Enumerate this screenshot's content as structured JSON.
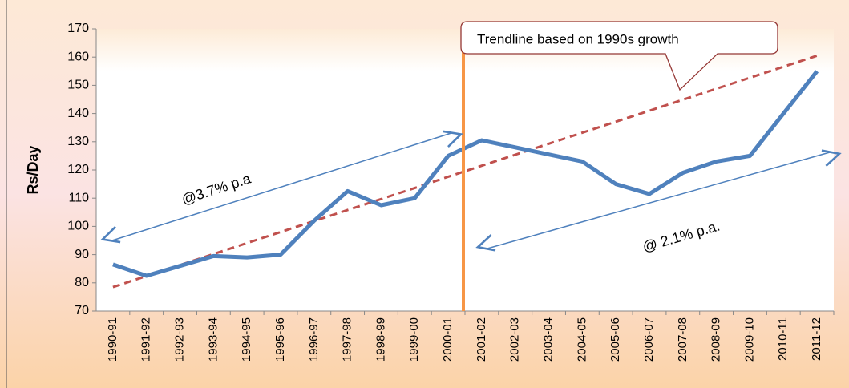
{
  "chart_data": {
    "type": "line",
    "ylabel": "Rs/Day",
    "categories": [
      "1990-91",
      "1991-92",
      "1992-93",
      "1993-94",
      "1994-95",
      "1995-96",
      "1996-97",
      "1997-98",
      "1998-99",
      "1999-00",
      "2000-01",
      "2001-02",
      "2002-03",
      "2003-04",
      "2004-05",
      "2005-06",
      "2006-07",
      "2007-08",
      "2008-09",
      "2009-10",
      "2010-11",
      "2011-12"
    ],
    "series": [
      {
        "color": "#4f81bd",
        "values": [
          86.5,
          82.5,
          86,
          89.5,
          89,
          90,
          102,
          112.5,
          107.5,
          110,
          125,
          130.5,
          128,
          125.5,
          123,
          115,
          111.5,
          119,
          123,
          125,
          140,
          155
        ]
      },
      {
        "color": "#c0504d",
        "dashed": true,
        "values": [
          78.5,
          82.4,
          86.3,
          90.2,
          94.1,
          98.0,
          101.9,
          105.8,
          109.7,
          113.6,
          117.6,
          121.5,
          125.4,
          129.3,
          133.2,
          137.1,
          141.0,
          144.9,
          148.8,
          152.7,
          156.6,
          160.5
        ]
      }
    ],
    "ylim": [
      70,
      170
    ],
    "yticks": [
      70,
      80,
      90,
      100,
      110,
      120,
      130,
      140,
      150,
      160,
      170
    ],
    "annotations": [
      "Trendline based on 1990s growth",
      "@3.7% p.a",
      "@ 2.1% p.a."
    ]
  }
}
